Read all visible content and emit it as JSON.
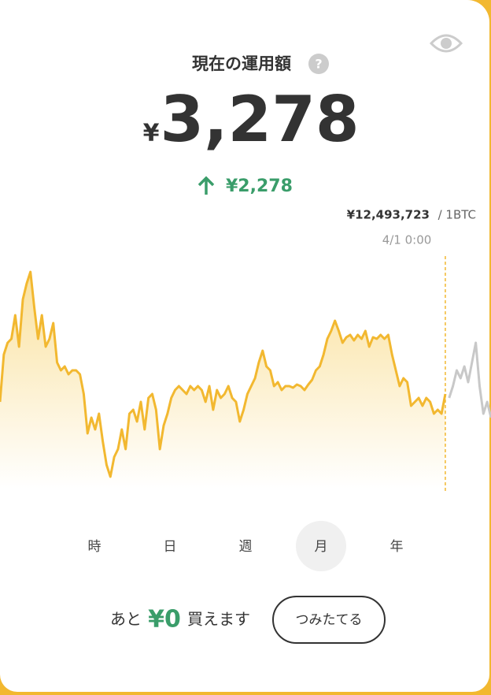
{
  "header": {
    "title": "現在の運用額",
    "help": "?"
  },
  "balance": {
    "currency": "¥",
    "amount": "3,278"
  },
  "change": {
    "amount": "¥2,278"
  },
  "price": {
    "value": "¥12,493,723",
    "unit": "/ 1BTC",
    "time": "4/1 0:00"
  },
  "chart_data": {
    "type": "line",
    "ylim": [
      0,
      300
    ],
    "series": [
      {
        "color": "#f2b830",
        "area": true,
        "values": [
          110,
          170,
          185,
          190,
          220,
          180,
          240,
          260,
          275,
          230,
          190,
          220,
          180,
          190,
          210,
          160,
          150,
          155,
          145,
          150,
          150,
          145,
          120,
          70,
          90,
          75,
          95,
          60,
          30,
          15,
          40,
          50,
          75,
          50,
          95,
          100,
          85,
          110,
          75,
          115,
          120,
          100,
          50,
          80,
          95,
          115,
          125,
          130,
          125,
          120,
          130,
          125,
          130,
          125,
          110,
          130,
          100,
          125,
          115,
          120,
          130,
          115,
          110,
          85,
          100,
          120,
          130,
          140,
          160,
          175,
          155,
          150,
          130,
          135,
          125,
          130,
          130,
          128,
          132,
          130,
          125,
          132,
          138,
          150,
          155,
          170,
          190,
          200,
          213,
          200,
          185,
          192,
          195,
          188,
          195,
          190,
          200,
          180,
          192,
          190,
          195,
          190,
          195,
          170,
          150,
          130,
          140,
          135,
          105,
          110,
          115,
          105,
          115,
          110,
          95,
          100,
          95,
          120
        ]
      },
      {
        "color": "#c8c8c8",
        "area": false,
        "values": [
          null,
          null,
          null,
          null,
          null,
          null,
          null,
          null,
          null,
          null,
          null,
          null,
          null,
          null,
          null,
          null,
          null,
          null,
          null,
          null,
          null,
          null,
          null,
          null,
          null,
          null,
          null,
          null,
          null,
          null,
          null,
          null,
          null,
          null,
          null,
          null,
          null,
          null,
          null,
          null,
          null,
          null,
          null,
          null,
          null,
          null,
          null,
          null,
          null,
          null,
          null,
          null,
          null,
          null,
          null,
          null,
          null,
          null,
          null,
          null,
          null,
          null,
          null,
          null,
          null,
          null,
          null,
          null,
          null,
          null,
          null,
          null,
          null,
          null,
          null,
          null,
          null,
          null,
          null,
          null,
          null,
          null,
          null,
          null,
          null,
          null,
          null,
          null,
          null,
          null,
          null,
          null,
          null,
          null,
          null,
          null,
          null,
          null,
          null,
          null,
          null,
          null,
          null,
          null,
          null,
          null,
          null,
          null,
          null,
          null,
          null,
          null,
          null,
          null,
          null,
          null,
          null,
          null,
          115,
          130,
          150,
          140,
          155,
          135,
          160,
          185,
          130,
          95,
          110,
          90
        ]
      }
    ]
  },
  "tabs": [
    "時",
    "日",
    "週",
    "月",
    "年"
  ],
  "selected_tab": 3,
  "footer": {
    "prefix": "あと",
    "amount": "¥0",
    "suffix": "買えます",
    "button": "つみたてる"
  }
}
